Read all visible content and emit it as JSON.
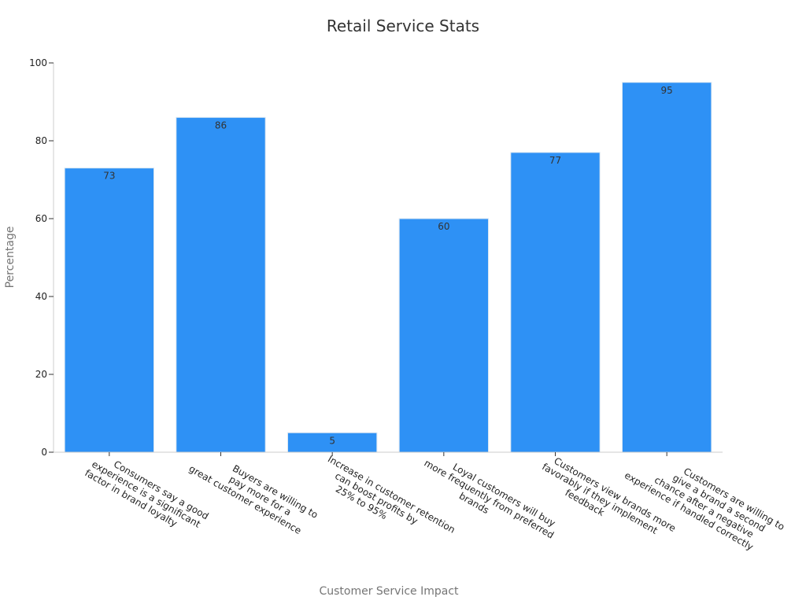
{
  "chart_data": {
    "type": "bar",
    "title": "Retail Service Stats",
    "xlabel": "Customer Service Impact",
    "ylabel": "Percentage",
    "ylim": [
      0,
      100
    ],
    "yticks": [
      0,
      20,
      40,
      60,
      80,
      100
    ],
    "grid": false,
    "categories": [
      "Consumers say a good experience is a significant factor in brand loyalty",
      "Buyers are willing to pay more for a great customer experience",
      "Increase in customer retention can boost profits by 25% to 95%",
      "Loyal customers will buy more frequently from preferred brands",
      "Customers view brands more favorably if they implement feedback",
      "Customers are willing to give a brand a second chance after a negative experience if handled correctly"
    ],
    "category_lines": [
      [
        "Consumers say a good",
        "experience is a significant",
        "factor in brand loyalty"
      ],
      [
        "Buyers are willing to",
        "pay more for a",
        "great customer experience"
      ],
      [
        "Increase in customer retention",
        "can boost profits by",
        "25% to 95%"
      ],
      [
        "Loyal customers will buy",
        "more frequently from preferred",
        "brands"
      ],
      [
        "Customers view brands more",
        "favorably if they implement",
        "feedback"
      ],
      [
        "Customers are willing to",
        "give a brand a second",
        "chance after a negative",
        "experience if handled correctly"
      ]
    ],
    "values": [
      73,
      86,
      5,
      60,
      77,
      95
    ],
    "bar_color": "#2e91f5",
    "bar_edge_color": "#d9e6f2"
  }
}
